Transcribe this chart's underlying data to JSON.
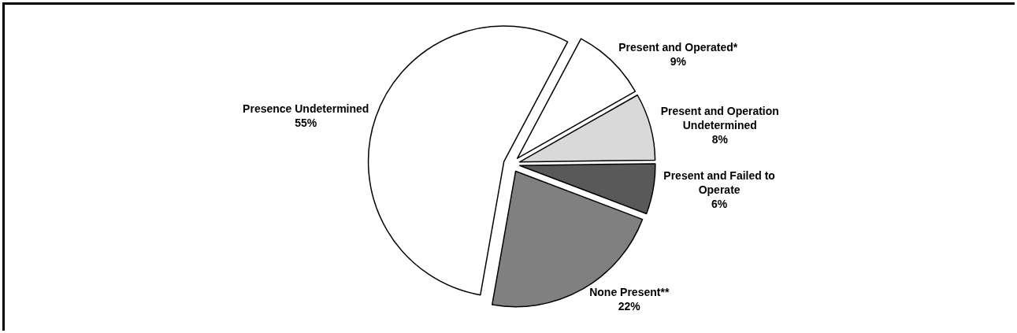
{
  "chart_data": {
    "type": "pie",
    "categories": [
      "Present and Operated*",
      "Present and Operation Undetermined",
      "Present and Failed to Operate",
      "None Present**",
      "Presence Undetermined"
    ],
    "values": [
      9,
      8,
      6,
      22,
      55
    ],
    "value_labels": [
      "9%",
      "8%",
      "6%",
      "22%",
      "55%"
    ],
    "colors": [
      "#ffffff",
      "#d9d9d9",
      "#595959",
      "#808080",
      "#ffffff"
    ],
    "legend": false
  }
}
